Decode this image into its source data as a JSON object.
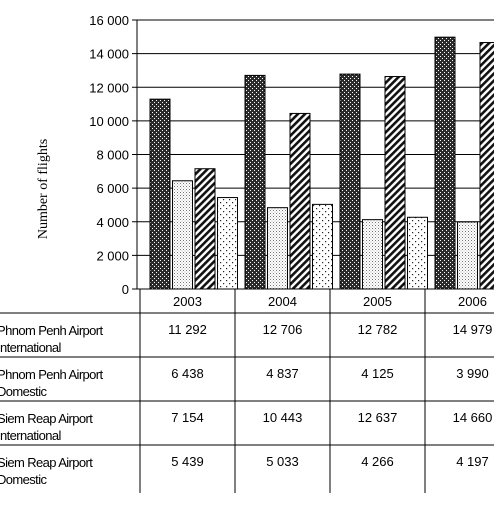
{
  "chart_data": {
    "type": "bar",
    "xlabel": "",
    "ylabel": "Number of flights",
    "ylim": [
      0,
      16000
    ],
    "yticks": [
      "0",
      "2 000",
      "4 000",
      "6 000",
      "8 000",
      "10 000",
      "12 000",
      "14 000",
      "16 000"
    ],
    "grid": true,
    "categories": [
      "2003",
      "2004",
      "2005",
      "2006"
    ],
    "series": [
      {
        "name": "Phnom Penh Airport International",
        "label_lines": [
          "Phnom Penh Airport",
          "International"
        ],
        "pattern": "dark-dots",
        "values": [
          11292,
          12706,
          12782,
          14979
        ],
        "display": [
          "11 292",
          "12 706",
          "12 782",
          "14 979"
        ]
      },
      {
        "name": "Phnom Penh Airport Domestic",
        "label_lines": [
          "Phnom Penh Airport",
          "Domestic"
        ],
        "pattern": "fine-grey-dots",
        "values": [
          6438,
          4837,
          4125,
          3990
        ],
        "display": [
          "6 438",
          "4 837",
          "4 125",
          "3 990"
        ]
      },
      {
        "name": "Siem Reap Airport International",
        "label_lines": [
          "Siem Reap Airport",
          "International"
        ],
        "pattern": "diagonal-hatch",
        "values": [
          7154,
          10443,
          12637,
          14660
        ],
        "display": [
          "7 154",
          "10 443",
          "12 637",
          "14 660"
        ]
      },
      {
        "name": "Siem Reap Airport Domestic",
        "label_lines": [
          "Siem Reap Airport",
          "Domestic"
        ],
        "pattern": "sparse-dots",
        "values": [
          5439,
          5033,
          4266,
          4197
        ],
        "display": [
          "5 439",
          "5 033",
          "4 266",
          "4 197"
        ]
      }
    ]
  }
}
